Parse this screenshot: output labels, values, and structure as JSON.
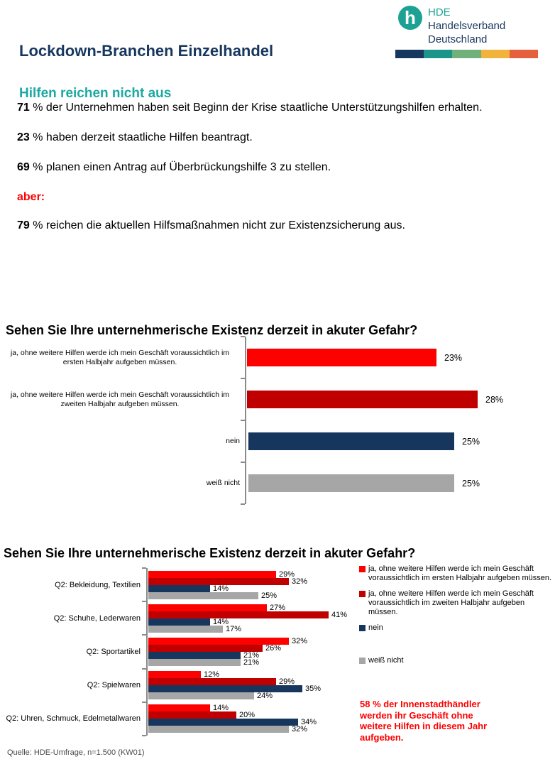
{
  "page": {
    "title": "Lockdown-Branchen Einzelhandel",
    "footer": "Quelle: HDE-Umfrage, n=1.500 (KW01)"
  },
  "logo": {
    "monogram": "h",
    "acronym": "HDE",
    "name_line1": "Handelsverband",
    "name_line2": "Deutschland",
    "colorbar": [
      "#17375E",
      "#1B948A",
      "#72B07B",
      "#F2B33D",
      "#E5603C"
    ]
  },
  "colors": {
    "brand_navy": "#17375E",
    "brand_teal": "#1CA294",
    "bright_red": "#FD0000",
    "dark_red": "#C00000",
    "bar_navy": "#17365D",
    "bar_gray": "#A6A6A6"
  },
  "intro": {
    "heading": "Hilfen reichen nicht aus",
    "stats": [
      {
        "number": "71",
        "text": "% der Unternehmen haben seit Beginn der Krise staatliche Unterstützungshilfen erhalten."
      },
      {
        "number": "23",
        "text": "% haben derzeit staatliche Hilfen beantragt."
      },
      {
        "number": "69",
        "text": "% planen einen Antrag auf Überbrückungshilfe 3 zu stellen."
      }
    ],
    "conjunction": "aber:",
    "final_stat": {
      "number": "79",
      "text": "% reichen die aktuellen Hilfsmaßnahmen nicht zur Existenzsicherung aus."
    }
  },
  "chart_data": [
    {
      "type": "bar",
      "orientation": "horizontal",
      "title": "Sehen Sie Ihre unternehmerische Existenz derzeit in akuter Gefahr?",
      "unit": "%",
      "categories": [
        "ja, ohne weitere Hilfen werde ich mein Geschäft voraussichtlich im ersten Halbjahr aufgeben müssen.",
        "ja, ohne weitere Hilfen werde ich mein Geschäft voraussichtlich im zweiten Halbjahr aufgeben müssen.",
        "nein",
        "weiß nicht"
      ],
      "values": [
        23,
        28,
        25,
        25
      ],
      "labels": [
        "23%",
        "28%",
        "25%",
        "25%"
      ],
      "colors": [
        "#FD0000",
        "#C00000",
        "#17365D",
        "#A6A6A6"
      ],
      "xlim": [
        0,
        35
      ],
      "grid": false,
      "legend_position": "none"
    },
    {
      "type": "bar",
      "orientation": "horizontal",
      "grouped": true,
      "title": "Sehen Sie Ihre unternehmerische Existenz derzeit in akuter Gefahr?",
      "unit": "%",
      "categories": [
        "Q2: Bekleidung, Textilien",
        "Q2: Schuhe, Lederwaren",
        "Q2: Sportartikel",
        "Q2: Spielwaren",
        "Q2: Uhren, Schmuck, Edelmetallwaren"
      ],
      "series": [
        {
          "name": "ja, ohne weitere Hilfen werde ich mein Geschäft voraussichtlich im ersten Halbjahr aufgeben müssen.",
          "color": "#FD0000",
          "values": [
            29,
            27,
            32,
            12,
            14
          ],
          "labels": [
            "29%",
            "27%",
            "32%",
            "12%",
            "14%"
          ]
        },
        {
          "name": "ja, ohne weitere Hilfen werde ich mein Geschäft voraussichtlich im zweiten Halbjahr aufgeben müssen.",
          "color": "#C00000",
          "values": [
            32,
            41,
            26,
            29,
            20
          ],
          "labels": [
            "32%",
            "41%",
            "26%",
            "29%",
            "20%"
          ]
        },
        {
          "name": "nein",
          "color": "#17365D",
          "values": [
            14,
            14,
            21,
            35,
            34
          ],
          "labels": [
            "14%",
            "14%",
            "21%",
            "35%",
            "34%"
          ]
        },
        {
          "name": "weiß nicht",
          "color": "#A6A6A6",
          "values": [
            25,
            17,
            21,
            24,
            32
          ],
          "labels": [
            "25%",
            "17%",
            "21%",
            "24%",
            "32%"
          ]
        }
      ],
      "xlim": [
        0,
        45
      ],
      "grid": false,
      "legend_position": "right"
    }
  ],
  "note": {
    "color": "#FD0000",
    "lines": [
      "58 % der Innenstadthändler",
      "werden ihr Geschäft ohne",
      "weitere Hilfen in diesem Jahr",
      "aufgeben."
    ]
  }
}
